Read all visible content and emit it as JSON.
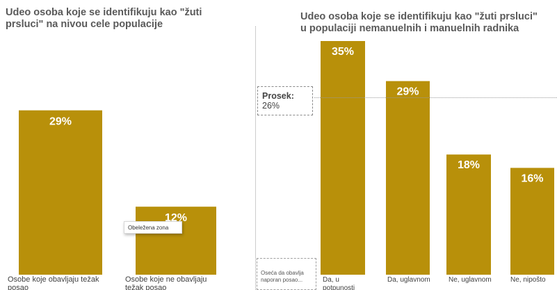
{
  "chart_data": [
    {
      "type": "bar",
      "title": "Udeo osoba koje se identifikuju kao \"žuti\nprsluci\" na nivou cele populacije",
      "categories": [
        "Osobe koje obavljaju težak\nposao",
        "Osobe koje ne obavljaju\ntežak posao"
      ],
      "values": [
        29,
        12
      ],
      "data_labels": [
        "29%",
        "12%"
      ],
      "ylim": [
        0,
        35
      ]
    },
    {
      "type": "bar",
      "title": "Udeo osoba koje se identifikuju kao \"žuti prsluci\"\nu populaciji nemanuelnih i manuelnih radnika",
      "categories": [
        "Da, u\npotpunosti",
        "Da, uglavnom",
        "Ne, uglavnom",
        "Ne, nipošto"
      ],
      "values": [
        35,
        29,
        18,
        16
      ],
      "data_labels": [
        "35%",
        "29%",
        "18%",
        "16%"
      ],
      "ylim": [
        0,
        35
      ],
      "reference_line": {
        "label": "Prosek:",
        "value_label": "26%",
        "value": 26
      },
      "axis_annotation": "Oseća da obavlja\nnaporan posao..."
    }
  ],
  "colors": {
    "bar": "#B8900A",
    "bar_label": "#ffffff",
    "tick_label": "#404040"
  },
  "tooltip": {
    "text": "Obeležena zona"
  }
}
